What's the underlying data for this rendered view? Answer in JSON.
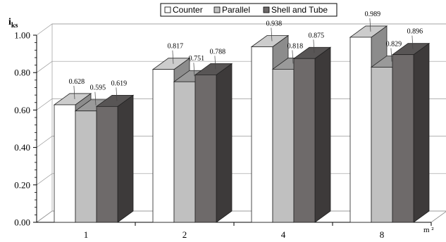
{
  "chart_data": {
    "type": "bar",
    "title": "",
    "ylabel_main": "i",
    "ylabel_sub": "ks",
    "xlabel": "m ²",
    "categories": [
      "1",
      "2",
      "4",
      "8"
    ],
    "ylim": [
      0,
      1.0
    ],
    "yticks": [
      "0.00",
      "0.20",
      "0.40",
      "0.60",
      "0.80",
      "1.00"
    ],
    "grid": true,
    "legend_position": "top",
    "series": [
      {
        "name": "Counter",
        "values": [
          0.628,
          0.817,
          0.938,
          0.989
        ],
        "labels": [
          "0.628",
          "0.817",
          "0.938",
          "0.989"
        ],
        "color": "#ffffff"
      },
      {
        "name": "Parallel",
        "values": [
          0.595,
          0.751,
          0.818,
          0.829
        ],
        "labels": [
          "0.595",
          "0.751",
          "0.818",
          "0.829"
        ],
        "color": "#c0c0c0"
      },
      {
        "name": "Shell and Tube",
        "values": [
          0.619,
          0.788,
          0.875,
          0.896
        ],
        "labels": [
          "0.619",
          "0.788",
          "0.875",
          "0.896"
        ],
        "color": "#6e6a6a"
      }
    ]
  }
}
